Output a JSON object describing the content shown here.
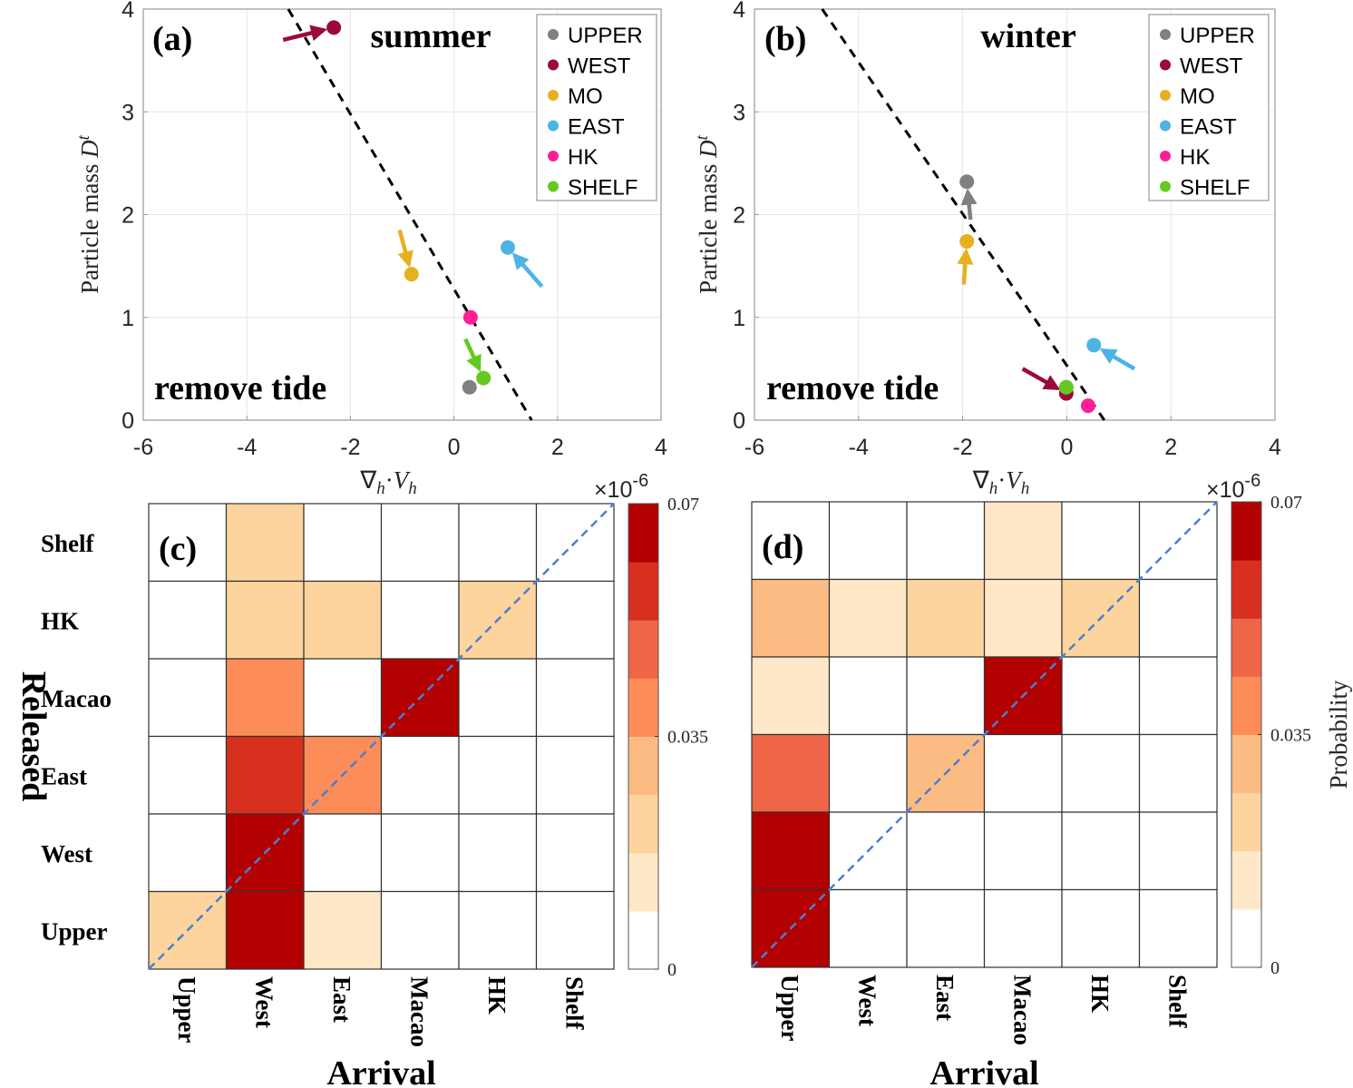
{
  "chart_data": [
    {
      "id": "a",
      "type": "scatter",
      "panel_label": "(a)",
      "title": "summer",
      "annotation": "remove tide",
      "xlabel": "∇h·Vh",
      "ylabel": "Particle mass D^t",
      "ylabel_main": "Particle mass ",
      "ylabel_var": "D",
      "ylabel_sup": "t",
      "x_exponent": "×10",
      "x_exponent_power": "-6",
      "xlim": [
        -6,
        4
      ],
      "ylim": [
        0,
        4
      ],
      "xticks": [
        -6,
        -4,
        -2,
        0,
        2,
        4
      ],
      "yticks": [
        0,
        1,
        2,
        3,
        4
      ],
      "grid": true,
      "legend_position": "top-right",
      "fit_line": {
        "style": "dashed",
        "color": "#000000",
        "points": [
          [
            -3.2,
            4
          ],
          [
            1.5,
            0
          ]
        ]
      },
      "series": [
        {
          "name": "UPPER",
          "color": "#808080",
          "x": 0.3,
          "y": 0.32,
          "arrow": null
        },
        {
          "name": "WEST",
          "color": "#9b0a3b",
          "x": -2.32,
          "y": 3.82,
          "arrow": {
            "from": [
              -3.3,
              3.7
            ]
          }
        },
        {
          "name": "MO",
          "color": "#e6b020",
          "x": -0.82,
          "y": 1.42,
          "arrow": {
            "from": [
              -1.05,
              1.85
            ]
          }
        },
        {
          "name": "EAST",
          "color": "#4db3e6",
          "x": 1.04,
          "y": 1.68,
          "arrow": {
            "from": [
              1.7,
              1.3
            ]
          }
        },
        {
          "name": "HK",
          "color": "#ff1e96",
          "x": 0.32,
          "y": 1.0,
          "arrow": null
        },
        {
          "name": "SHELF",
          "color": "#63c920",
          "x": 0.57,
          "y": 0.41,
          "arrow": {
            "from": [
              0.22,
              0.79
            ]
          }
        }
      ]
    },
    {
      "id": "b",
      "type": "scatter",
      "panel_label": "(b)",
      "title": "winter",
      "annotation": "remove tide",
      "xlabel": "∇h·Vh",
      "ylabel": "Particle mass D^t",
      "ylabel_main": "Particle mass ",
      "ylabel_var": "D",
      "ylabel_sup": "t",
      "x_exponent": "×10",
      "x_exponent_power": "-6",
      "xlim": [
        -6,
        4
      ],
      "ylim": [
        0,
        4
      ],
      "xticks": [
        -6,
        -4,
        -2,
        0,
        2,
        4
      ],
      "yticks": [
        0,
        1,
        2,
        3,
        4
      ],
      "grid": true,
      "legend_position": "top-right",
      "fit_line": {
        "style": "dashed",
        "color": "#000000",
        "points": [
          [
            -4.7,
            4
          ],
          [
            0.72,
            0
          ]
        ]
      },
      "series": [
        {
          "name": "UPPER",
          "color": "#808080",
          "x": -1.92,
          "y": 2.32,
          "arrow": {
            "from": [
              -1.85,
              1.95
            ]
          }
        },
        {
          "name": "WEST",
          "color": "#9b0a3b",
          "x": -0.01,
          "y": 0.26,
          "arrow": {
            "from": [
              -0.85,
              0.5
            ]
          }
        },
        {
          "name": "MO",
          "color": "#e6b020",
          "x": -1.92,
          "y": 1.74,
          "arrow": {
            "from": [
              -1.98,
              1.32
            ]
          }
        },
        {
          "name": "EAST",
          "color": "#4db3e6",
          "x": 0.52,
          "y": 0.73,
          "arrow": {
            "from": [
              1.3,
              0.5
            ]
          }
        },
        {
          "name": "HK",
          "color": "#ff1e96",
          "x": 0.41,
          "y": 0.14,
          "arrow": null
        },
        {
          "name": "SHELF",
          "color": "#63c920",
          "x": -0.01,
          "y": 0.32,
          "arrow": null
        }
      ]
    },
    {
      "id": "c",
      "type": "heatmap",
      "panel_label": "(c)",
      "xlabel": "Arrival",
      "ylabel": "Released",
      "x_categories": [
        "Upper",
        "West",
        "East",
        "Macao",
        "HK",
        "Shelf"
      ],
      "y_categories_top_to_bottom": [
        "Shelf",
        "HK",
        "Macao",
        "East",
        "West",
        "Upper"
      ],
      "values_level_note": "level index 0-7 of discrete colorbar (0 to 0.07, step 0.00875)",
      "levels": [
        [
          0,
          2,
          0,
          0,
          0,
          0
        ],
        [
          0,
          2,
          2,
          0,
          2,
          0
        ],
        [
          0,
          4,
          0,
          7,
          0,
          0
        ],
        [
          0,
          6,
          4,
          0,
          0,
          0
        ],
        [
          0,
          7,
          0,
          0,
          0,
          0
        ],
        [
          2,
          7,
          1,
          0,
          0,
          0
        ]
      ],
      "diagonal_line": {
        "style": "dashed",
        "color": "#4a7fd0"
      },
      "colorbar": {
        "min": 0,
        "max": 0.07,
        "ticks": [
          "0",
          "0.035",
          "0.07"
        ],
        "label": ""
      }
    },
    {
      "id": "d",
      "type": "heatmap",
      "panel_label": "(d)",
      "xlabel": "Arrival",
      "ylabel": "",
      "x_categories": [
        "Upper",
        "West",
        "East",
        "Macao",
        "HK",
        "Shelf"
      ],
      "y_categories_top_to_bottom": [
        "Shelf",
        "HK",
        "Macao",
        "East",
        "West",
        "Upper"
      ],
      "values_level_note": "level index 0-7 of discrete colorbar (0 to 0.07, step 0.00875)",
      "levels": [
        [
          0,
          0,
          0,
          1,
          0,
          0
        ],
        [
          3,
          1,
          2,
          1,
          2,
          0
        ],
        [
          1,
          0,
          0,
          7,
          0,
          0
        ],
        [
          5,
          0,
          3,
          0,
          0,
          0
        ],
        [
          7,
          0,
          0,
          0,
          0,
          0
        ],
        [
          7,
          0,
          0,
          0,
          0,
          0
        ]
      ],
      "diagonal_line": {
        "style": "dashed",
        "color": "#4a7fd0"
      },
      "colorbar": {
        "min": 0,
        "max": 0.07,
        "ticks": [
          "0",
          "0.035",
          "0.07"
        ],
        "label": "Probability"
      }
    }
  ],
  "colormap": [
    "#ffffff",
    "#fee8c8",
    "#fdd49e",
    "#fdbb84",
    "#fc8d59",
    "#ef6548",
    "#d7301f",
    "#b30000"
  ]
}
